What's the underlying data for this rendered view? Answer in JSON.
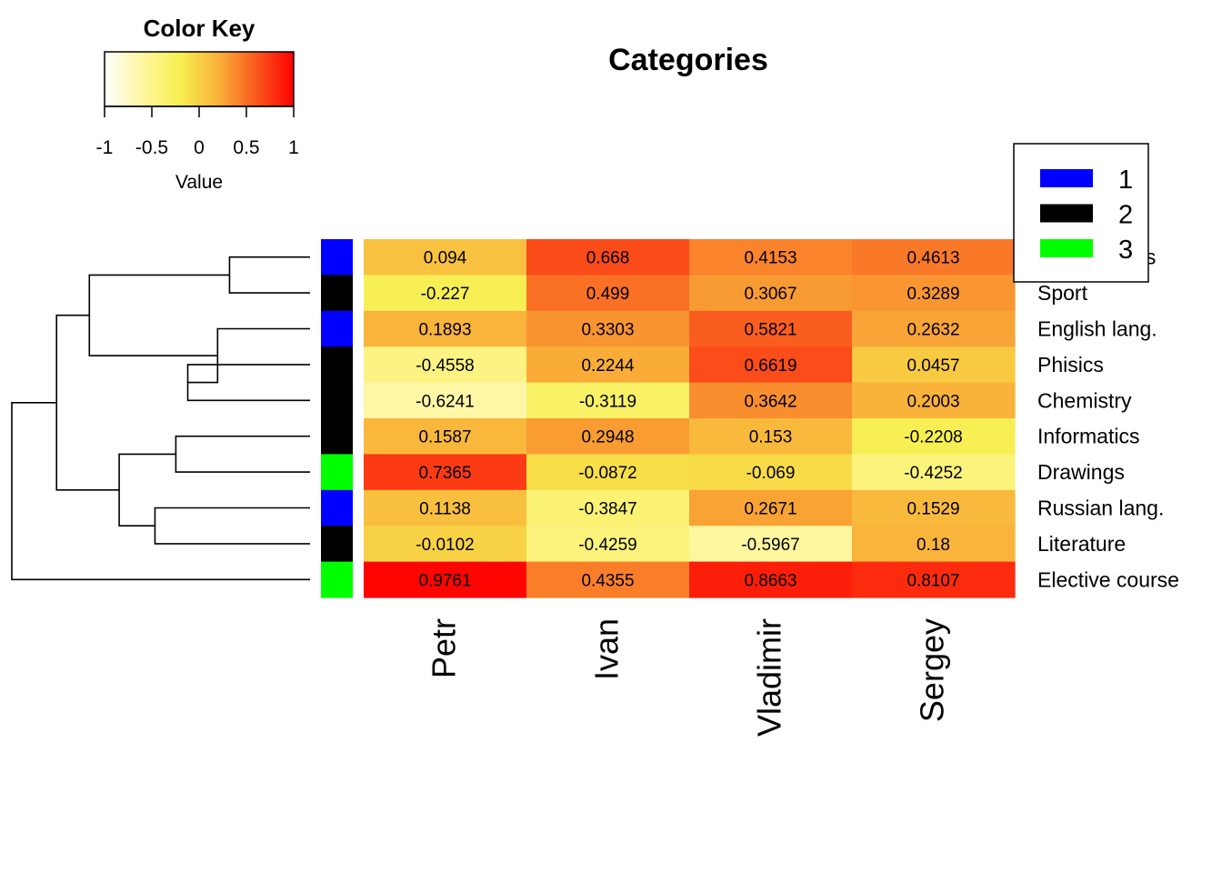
{
  "chart_data": {
    "type": "heatmap",
    "title": "Categories",
    "columns": [
      "Petr",
      "Ivan",
      "Vladimir",
      "Sergey"
    ],
    "rows": [
      "Mathematics",
      "Sport",
      "English lang.",
      "Phisics",
      "Chemistry",
      "Informatics",
      "Drawings",
      "Russian lang.",
      "Literature",
      "Elective course"
    ],
    "values": [
      [
        0.094,
        0.668,
        0.4153,
        0.4613
      ],
      [
        -0.227,
        0.499,
        0.3067,
        0.3289
      ],
      [
        0.1893,
        0.3303,
        0.5821,
        0.2632
      ],
      [
        -0.4558,
        0.2244,
        0.6619,
        0.0457
      ],
      [
        -0.6241,
        -0.3119,
        0.3642,
        0.2003
      ],
      [
        0.1587,
        0.2948,
        0.153,
        -0.2208
      ],
      [
        0.7365,
        -0.0872,
        -0.069,
        -0.4252
      ],
      [
        0.1138,
        -0.3847,
        0.2671,
        0.1529
      ],
      [
        -0.0102,
        -0.4259,
        -0.5967,
        0.18
      ],
      [
        0.9761,
        0.4355,
        0.8663,
        0.8107
      ]
    ],
    "cell_labels": [
      [
        "0.094",
        "0.668",
        "0.4153",
        "0.4613"
      ],
      [
        "-0.227",
        "0.499",
        "0.3067",
        "0.3289"
      ],
      [
        "0.1893",
        "0.3303",
        "0.5821",
        "0.2632"
      ],
      [
        "-0.4558",
        "0.2244",
        "0.6619",
        "0.0457"
      ],
      [
        "-0.6241",
        "-0.3119",
        "0.3642",
        "0.2003"
      ],
      [
        "0.1587",
        "0.2948",
        "0.153",
        "-0.2208"
      ],
      [
        "0.7365",
        "-0.0872",
        "-0.069",
        "-0.4252"
      ],
      [
        "0.1138",
        "-0.3847",
        "0.2671",
        "0.1529"
      ],
      [
        "-0.0102",
        "-0.4259",
        "-0.5967",
        "0.18"
      ],
      [
        "0.9761",
        "0.4355",
        "0.8663",
        "0.8107"
      ]
    ],
    "row_groups": [
      "1",
      "2",
      "1",
      "2",
      "2",
      "2",
      "3",
      "1",
      "2",
      "3"
    ],
    "group_colors": {
      "1": "#0000ff",
      "2": "#000000",
      "3": "#00ff00"
    },
    "legend": {
      "placement": "top-right",
      "entries": [
        {
          "label": "1",
          "color": "#0000ff"
        },
        {
          "label": "2",
          "color": "#000000"
        },
        {
          "label": "3",
          "color": "#00ff00"
        }
      ]
    },
    "color_key": {
      "title": "Color Key",
      "xlabel": "Value",
      "range": [
        -1,
        1
      ],
      "ticks": [
        "-1",
        "-0.5",
        "0",
        "0.5",
        "1"
      ],
      "colors": [
        "#ffffff",
        "#fff6a0",
        "#f7ef4f",
        "#f9b23a",
        "#fa5a1e",
        "#ff0000"
      ]
    },
    "row_dendrogram": {
      "placement": "left",
      "merges": [
        {
          "a": "r0",
          "b": "r1",
          "height": 0.27
        },
        {
          "a": "r3",
          "b": "r4",
          "height": 0.41
        },
        {
          "a": "r7",
          "b": "r8",
          "height": 0.52
        },
        {
          "a": "m1",
          "b": "r2",
          "height": 0.31
        },
        {
          "a": "r5",
          "b": "r6",
          "height": 0.45
        },
        {
          "a": "m4",
          "b": "m2",
          "height": 0.64
        },
        {
          "a": "m0",
          "b": "m3",
          "height": 0.74
        },
        {
          "a": "m5",
          "b": "m6",
          "height": 0.85
        },
        {
          "a": "m7",
          "b": "r9",
          "height": 1.0
        }
      ]
    }
  }
}
